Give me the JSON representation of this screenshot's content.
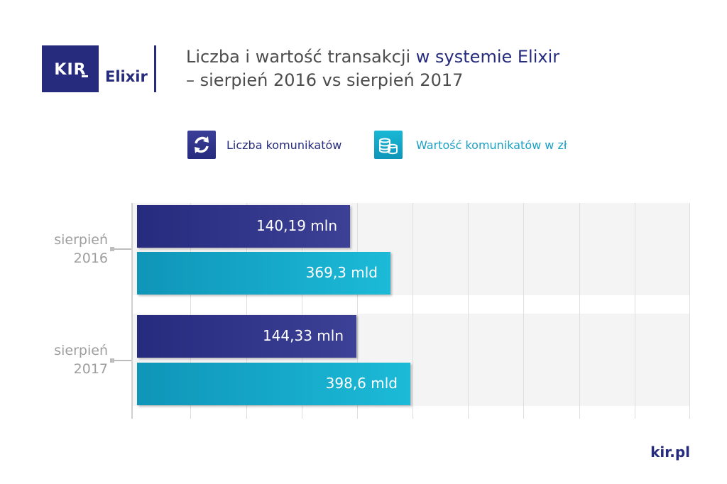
{
  "header": {
    "logo_kir": "KIR",
    "logo_elixir": "Elixir",
    "title_part1": "Liczba i wartość transakcji ",
    "title_highlight": "w systemie Elixir",
    "title_line2": "– sierpień 2016 vs sierpień 2017"
  },
  "legend": {
    "count_label": "Liczba komunikatów",
    "value_label": "Wartość komunikatów w zł",
    "count_icon": "refresh-arrows-icon",
    "value_icon": "coin-stack-icon"
  },
  "colors": {
    "count": "#262b7e",
    "value": "#17a9cb"
  },
  "chart_data": {
    "type": "bar",
    "orientation": "horizontal",
    "categories": [
      "sierpień 2016",
      "sierpień 2017"
    ],
    "category_lines": [
      [
        "sierpień",
        "2016"
      ],
      [
        "sierpień",
        "2017"
      ]
    ],
    "series": [
      {
        "name": "Liczba komunikatów",
        "values": [
          140.19,
          144.33
        ],
        "labels": [
          "140,19 mln",
          "144,33 mln"
        ]
      },
      {
        "name": "Wartość komunikatów w zł",
        "values": [
          369.3,
          398.6
        ],
        "labels": [
          "369,3 mld",
          "398,6 mld"
        ]
      }
    ],
    "grid": true
  },
  "footer": {
    "site": "kir.pl"
  }
}
